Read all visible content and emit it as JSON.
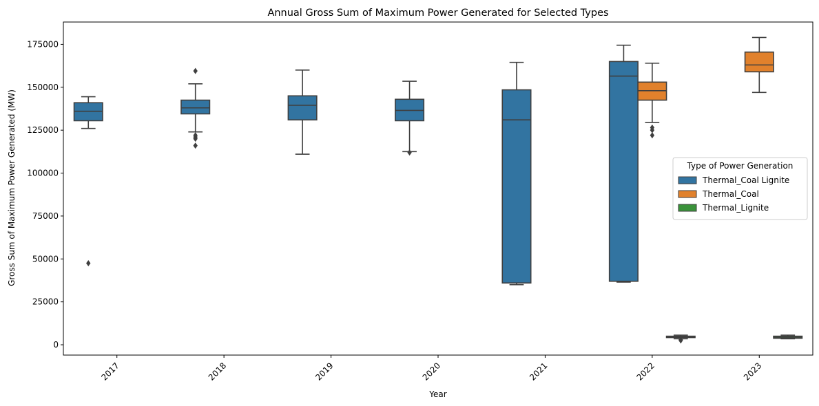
{
  "chart_data": {
    "type": "box",
    "title": "Annual Gross Sum of Maximum Power Generated for Selected Types",
    "xlabel": "Year",
    "ylabel": "Gross Sum of Maximum Power Generated (MW)",
    "categories": [
      "2017",
      "2018",
      "2019",
      "2020",
      "2021",
      "2022",
      "2023"
    ],
    "ylim": [
      -6000,
      188000
    ],
    "yticks": [
      0,
      25000,
      50000,
      75000,
      100000,
      125000,
      150000,
      175000
    ],
    "ytick_labels": [
      "0",
      "25000",
      "50000",
      "75000",
      "100000",
      "125000",
      "150000",
      "175000"
    ],
    "grid": false,
    "legend": {
      "title": "Type of Power Generation",
      "placement": "center-right",
      "entries": [
        "Thermal_Coal Lignite",
        "Thermal_Coal",
        "Thermal_Lignite"
      ]
    },
    "series": [
      {
        "name": "Thermal_Coal Lignite",
        "color": "#3274a1",
        "boxes": [
          {
            "category": "2017",
            "whisker_low": 126000,
            "q1": 130500,
            "median": 136000,
            "q3": 141000,
            "whisker_high": 144500,
            "outliers": [
              47500
            ]
          },
          {
            "category": "2018",
            "whisker_low": 124000,
            "q1": 134500,
            "median": 138000,
            "q3": 142500,
            "whisker_high": 152000,
            "outliers": [
              159500,
              122000,
              121000,
              120000,
              116000
            ]
          },
          {
            "category": "2019",
            "whisker_low": 111000,
            "q1": 131000,
            "median": 139500,
            "q3": 145000,
            "whisker_high": 160000,
            "outliers": []
          },
          {
            "category": "2020",
            "whisker_low": 112500,
            "q1": 130500,
            "median": 136500,
            "q3": 143000,
            "whisker_high": 153500,
            "outliers": [
              112000
            ]
          },
          {
            "category": "2021",
            "whisker_low": 35000,
            "q1": 36000,
            "median": 131000,
            "q3": 148500,
            "whisker_high": 164500,
            "outliers": []
          },
          {
            "category": "2022",
            "whisker_low": 36500,
            "q1": 37000,
            "median": 156500,
            "q3": 165000,
            "whisker_high": 174500,
            "outliers": []
          }
        ]
      },
      {
        "name": "Thermal_Coal",
        "color": "#e1812c",
        "boxes": [
          {
            "category": "2022",
            "whisker_low": 129500,
            "q1": 142500,
            "median": 148000,
            "q3": 153000,
            "whisker_high": 164000,
            "outliers": [
              126500,
              125000,
              122000
            ]
          },
          {
            "category": "2023",
            "whisker_low": 147000,
            "q1": 159000,
            "median": 163000,
            "q3": 170500,
            "whisker_high": 179000,
            "outliers": []
          }
        ]
      },
      {
        "name": "Thermal_Lignite",
        "color": "#3a923a",
        "boxes": [
          {
            "category": "2022",
            "whisker_low": 3500,
            "q1": 4200,
            "median": 4700,
            "q3": 5000,
            "whisker_high": 5600,
            "outliers": [
              3000,
              2500
            ]
          },
          {
            "category": "2023",
            "whisker_low": 3500,
            "q1": 3800,
            "median": 4400,
            "q3": 5000,
            "whisker_high": 5600,
            "outliers": []
          }
        ]
      }
    ]
  }
}
